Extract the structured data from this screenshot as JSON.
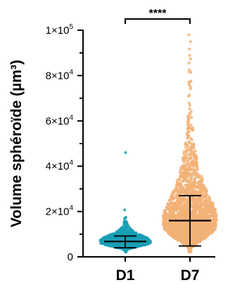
{
  "chart_data": {
    "type": "scatter",
    "subtype": "swarm",
    "ylabel": "Volume sphéroïde (µm³)",
    "ylim": [
      0,
      100000
    ],
    "y_ticks": [
      {
        "value": 0,
        "label": "0",
        "exp": ""
      },
      {
        "value": 20000,
        "label": "2×10",
        "exp": "4"
      },
      {
        "value": 40000,
        "label": "4×10",
        "exp": "4"
      },
      {
        "value": 60000,
        "label": "6×10",
        "exp": "4"
      },
      {
        "value": 80000,
        "label": "8×10",
        "exp": "4"
      },
      {
        "value": 100000,
        "label": "1×10",
        "exp": "5"
      }
    ],
    "categories": [
      "D1",
      "D7"
    ],
    "series": [
      {
        "category": "D1",
        "color": "#1a9fb5",
        "median": 6800,
        "error_low": 4000,
        "error_high": 9200,
        "max": 46000,
        "density_range": [
          2000,
          14000
        ]
      },
      {
        "category": "D7",
        "color": "#f2b277",
        "median": 16000,
        "error_low": 4800,
        "error_high": 27000,
        "max": 98000,
        "density_range": [
          2000,
          40000
        ]
      }
    ],
    "significance": {
      "pair": [
        "D1",
        "D7"
      ],
      "label": "****"
    },
    "grid": false,
    "legend": "none"
  }
}
